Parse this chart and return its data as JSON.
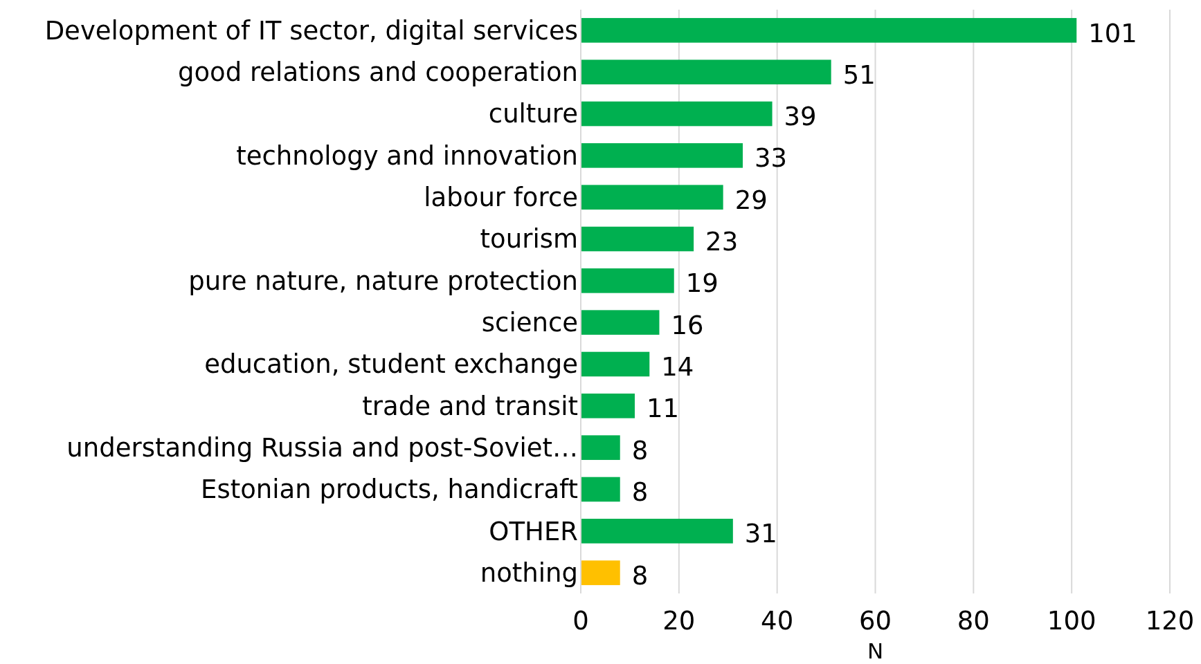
{
  "chart_data": {
    "type": "bar",
    "orientation": "horizontal",
    "xlabel": "N",
    "categories": [
      "Development of IT sector, digital services",
      "good relations and cooperation",
      "culture",
      "technology and innovation",
      "labour force",
      "tourism",
      "pure nature, nature protection",
      "science",
      "education, student exchange",
      "trade and transit",
      "understanding Russia and post-Soviet…",
      "Estonian products, handicraft",
      "OTHER",
      "nothing"
    ],
    "values": [
      101,
      51,
      39,
      33,
      29,
      23,
      19,
      16,
      14,
      11,
      8,
      8,
      31,
      8
    ],
    "colors": [
      "#00b050",
      "#00b050",
      "#00b050",
      "#00b050",
      "#00b050",
      "#00b050",
      "#00b050",
      "#00b050",
      "#00b050",
      "#00b050",
      "#00b050",
      "#00b050",
      "#00b050",
      "#ffc000"
    ],
    "xlim": [
      0,
      120
    ],
    "xticks": [
      0,
      20,
      40,
      60,
      80,
      100,
      120
    ],
    "grid": "x",
    "data_labels": true
  }
}
